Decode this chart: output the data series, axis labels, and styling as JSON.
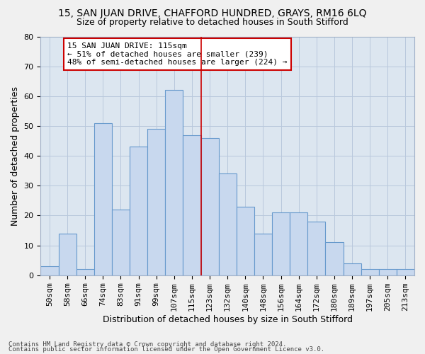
{
  "title": "15, SAN JUAN DRIVE, CHAFFORD HUNDRED, GRAYS, RM16 6LQ",
  "subtitle": "Size of property relative to detached houses in South Stifford",
  "xlabel": "Distribution of detached houses by size in South Stifford",
  "ylabel": "Number of detached properties",
  "footnote1": "Contains HM Land Registry data © Crown copyright and database right 2024.",
  "footnote2": "Contains public sector information licensed under the Open Government Licence v3.0.",
  "bar_labels": [
    "50sqm",
    "58sqm",
    "66sqm",
    "74sqm",
    "83sqm",
    "91sqm",
    "99sqm",
    "107sqm",
    "115sqm",
    "123sqm",
    "132sqm",
    "140sqm",
    "148sqm",
    "156sqm",
    "164sqm",
    "172sqm",
    "180sqm",
    "189sqm",
    "197sqm",
    "205sqm",
    "213sqm"
  ],
  "bar_values": [
    3,
    14,
    2,
    51,
    22,
    43,
    49,
    62,
    47,
    46,
    34,
    23,
    14,
    21,
    21,
    18,
    11,
    4,
    2,
    2,
    2
  ],
  "bar_color": "#c8d8ee",
  "bar_edge_color": "#6699cc",
  "highlight_index": 8,
  "highlight_line_color": "#cc0000",
  "annotation_box_color": "#cc0000",
  "annotation_text": "15 SAN JUAN DRIVE: 115sqm\n← 51% of detached houses are smaller (239)\n48% of semi-detached houses are larger (224) →",
  "ylim": [
    0,
    80
  ],
  "yticks": [
    0,
    10,
    20,
    30,
    40,
    50,
    60,
    70,
    80
  ],
  "grid_color": "#b8c8dc",
  "bg_color": "#dce6f0",
  "fig_bg_color": "#f0f0f0",
  "title_fontsize": 10,
  "subtitle_fontsize": 9,
  "axis_label_fontsize": 9,
  "tick_fontsize": 8,
  "footnote_fontsize": 6.5
}
